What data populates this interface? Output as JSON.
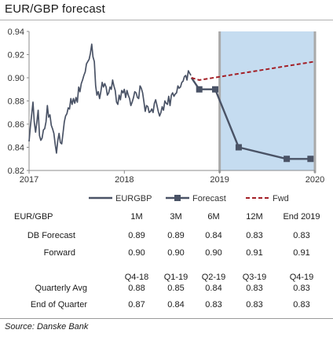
{
  "title": "EUR/GBP forecast",
  "chart_data": {
    "type": "line",
    "ylim": [
      0.82,
      0.94
    ],
    "yticks": [
      "0.82",
      "0.84",
      "0.86",
      "0.88",
      "0.90",
      "0.92",
      "0.94"
    ],
    "xlim": [
      "2017-01-01",
      "2020-01-01"
    ],
    "xticks": [
      {
        "label": "2017",
        "date": "2017-01-01"
      },
      {
        "label": "2018",
        "date": "2018-01-01"
      },
      {
        "label": "2019",
        "date": "2019-01-01"
      },
      {
        "label": "2020",
        "date": "2020-01-01"
      }
    ],
    "shaded_region": {
      "from": "2019-01-01",
      "to": "2020-01-01",
      "color": "#c5dcf0"
    },
    "legend_position": "bottom",
    "series": [
      {
        "name": "EURGBP",
        "style": "solid",
        "color": "#4a5366",
        "points": [
          [
            "2017-01-01",
            0.845
          ],
          [
            "2017-01-06",
            0.858
          ],
          [
            "2017-01-11",
            0.868
          ],
          [
            "2017-01-16",
            0.879
          ],
          [
            "2017-01-21",
            0.862
          ],
          [
            "2017-01-26",
            0.853
          ],
          [
            "2017-01-31",
            0.862
          ],
          [
            "2017-02-05",
            0.872
          ],
          [
            "2017-02-10",
            0.85
          ],
          [
            "2017-02-15",
            0.846
          ],
          [
            "2017-02-20",
            0.848
          ],
          [
            "2017-02-25",
            0.855
          ],
          [
            "2017-03-02",
            0.856
          ],
          [
            "2017-03-07",
            0.862
          ],
          [
            "2017-03-12",
            0.876
          ],
          [
            "2017-03-17",
            0.866
          ],
          [
            "2017-03-22",
            0.868
          ],
          [
            "2017-03-27",
            0.859
          ],
          [
            "2017-04-01",
            0.856
          ],
          [
            "2017-04-06",
            0.852
          ],
          [
            "2017-04-11",
            0.843
          ],
          [
            "2017-04-16",
            0.835
          ],
          [
            "2017-04-21",
            0.846
          ],
          [
            "2017-04-26",
            0.852
          ],
          [
            "2017-05-01",
            0.844
          ],
          [
            "2017-05-06",
            0.843
          ],
          [
            "2017-05-11",
            0.852
          ],
          [
            "2017-05-16",
            0.862
          ],
          [
            "2017-05-21",
            0.867
          ],
          [
            "2017-05-26",
            0.869
          ],
          [
            "2017-05-31",
            0.874
          ],
          [
            "2017-06-05",
            0.873
          ],
          [
            "2017-06-10",
            0.882
          ],
          [
            "2017-06-15",
            0.877
          ],
          [
            "2017-06-20",
            0.882
          ],
          [
            "2017-06-25",
            0.878
          ],
          [
            "2017-06-30",
            0.883
          ],
          [
            "2017-07-05",
            0.879
          ],
          [
            "2017-07-10",
            0.892
          ],
          [
            "2017-07-15",
            0.888
          ],
          [
            "2017-07-20",
            0.895
          ],
          [
            "2017-07-25",
            0.898
          ],
          [
            "2017-07-30",
            0.902
          ],
          [
            "2017-08-04",
            0.905
          ],
          [
            "2017-08-09",
            0.912
          ],
          [
            "2017-08-14",
            0.914
          ],
          [
            "2017-08-19",
            0.916
          ],
          [
            "2017-08-24",
            0.921
          ],
          [
            "2017-08-29",
            0.929
          ],
          [
            "2017-09-03",
            0.918
          ],
          [
            "2017-09-08",
            0.914
          ],
          [
            "2017-09-13",
            0.893
          ],
          [
            "2017-09-18",
            0.885
          ],
          [
            "2017-09-23",
            0.888
          ],
          [
            "2017-09-28",
            0.882
          ],
          [
            "2017-10-03",
            0.888
          ],
          [
            "2017-10-08",
            0.896
          ],
          [
            "2017-10-13",
            0.892
          ],
          [
            "2017-10-18",
            0.895
          ],
          [
            "2017-10-23",
            0.892
          ],
          [
            "2017-10-28",
            0.885
          ],
          [
            "2017-11-02",
            0.887
          ],
          [
            "2017-11-07",
            0.892
          ],
          [
            "2017-11-12",
            0.89
          ],
          [
            "2017-11-17",
            0.898
          ],
          [
            "2017-11-22",
            0.893
          ],
          [
            "2017-11-27",
            0.889
          ],
          [
            "2017-12-02",
            0.879
          ],
          [
            "2017-12-07",
            0.877
          ],
          [
            "2017-12-12",
            0.885
          ],
          [
            "2017-12-17",
            0.881
          ],
          [
            "2017-12-22",
            0.889
          ],
          [
            "2017-12-27",
            0.887
          ],
          [
            "2018-01-01",
            0.89
          ],
          [
            "2018-01-06",
            0.883
          ],
          [
            "2018-01-11",
            0.889
          ],
          [
            "2018-01-16",
            0.885
          ],
          [
            "2018-01-21",
            0.882
          ],
          [
            "2018-01-26",
            0.876
          ],
          [
            "2018-01-31",
            0.879
          ],
          [
            "2018-02-05",
            0.883
          ],
          [
            "2018-02-10",
            0.888
          ],
          [
            "2018-02-15",
            0.887
          ],
          [
            "2018-02-20",
            0.883
          ],
          [
            "2018-02-25",
            0.882
          ],
          [
            "2018-03-02",
            0.893
          ],
          [
            "2018-03-07",
            0.891
          ],
          [
            "2018-03-12",
            0.887
          ],
          [
            "2018-03-17",
            0.879
          ],
          [
            "2018-03-22",
            0.871
          ],
          [
            "2018-03-27",
            0.876
          ],
          [
            "2018-04-01",
            0.875
          ],
          [
            "2018-04-06",
            0.87
          ],
          [
            "2018-04-11",
            0.871
          ],
          [
            "2018-04-16",
            0.873
          ],
          [
            "2018-04-21",
            0.87
          ],
          [
            "2018-04-26",
            0.878
          ],
          [
            "2018-05-01",
            0.881
          ],
          [
            "2018-05-06",
            0.876
          ],
          [
            "2018-05-11",
            0.871
          ],
          [
            "2018-05-16",
            0.867
          ],
          [
            "2018-05-21",
            0.87
          ],
          [
            "2018-05-26",
            0.875
          ],
          [
            "2018-05-31",
            0.872
          ],
          [
            "2018-06-05",
            0.88
          ],
          [
            "2018-06-10",
            0.878
          ],
          [
            "2018-06-15",
            0.877
          ],
          [
            "2018-06-20",
            0.884
          ],
          [
            "2018-06-25",
            0.876
          ],
          [
            "2018-06-30",
            0.885
          ],
          [
            "2018-07-05",
            0.887
          ],
          [
            "2018-07-10",
            0.884
          ],
          [
            "2018-07-15",
            0.886
          ],
          [
            "2018-07-20",
            0.887
          ],
          [
            "2018-07-25",
            0.893
          ],
          [
            "2018-07-30",
            0.891
          ],
          [
            "2018-08-04",
            0.892
          ],
          [
            "2018-08-09",
            0.896
          ],
          [
            "2018-08-14",
            0.897
          ],
          [
            "2018-08-19",
            0.901
          ],
          [
            "2018-08-24",
            0.902
          ],
          [
            "2018-08-29",
            0.898
          ],
          [
            "2018-09-03",
            0.906
          ],
          [
            "2018-09-08",
            0.904
          ],
          [
            "2018-09-13",
            0.902
          ]
        ]
      },
      {
        "name": "Forecast",
        "style": "solid-square-markers",
        "color": "#4a5366",
        "points": [
          [
            "2018-09-15",
            0.9
          ],
          [
            "2018-10-15",
            0.89
          ],
          [
            "2018-12-15",
            0.89
          ],
          [
            "2019-03-15",
            0.84
          ],
          [
            "2019-09-15",
            0.83
          ],
          [
            "2019-12-15",
            0.83
          ]
        ]
      },
      {
        "name": "Fwd",
        "style": "dashed",
        "color": "#a31f26",
        "points": [
          [
            "2018-09-15",
            0.9
          ],
          [
            "2018-10-15",
            0.898
          ],
          [
            "2020-01-01",
            0.914
          ]
        ]
      }
    ]
  },
  "table": {
    "pair_label": "EUR/GBP",
    "horizons": [
      "1M",
      "3M",
      "6M",
      "12M",
      "End 2019"
    ],
    "rows": [
      {
        "label": "DB Forecast",
        "values": [
          "0.89",
          "0.89",
          "0.84",
          "0.83",
          "0.83"
        ]
      },
      {
        "label": "Forward",
        "values": [
          "0.90",
          "0.90",
          "0.90",
          "0.91",
          "0.91"
        ]
      }
    ],
    "quarters": [
      "Q4-18",
      "Q1-19",
      "Q2-19",
      "Q3-19",
      "Q4-19"
    ],
    "quarter_rows": [
      {
        "label": "Quarterly Avg",
        "values": [
          "0.88",
          "0.85",
          "0.84",
          "0.83",
          "0.83"
        ]
      },
      {
        "label": "End of Quarter",
        "values": [
          "0.87",
          "0.84",
          "0.83",
          "0.83",
          "0.83"
        ]
      }
    ]
  },
  "source": "Source: Danske Bank"
}
